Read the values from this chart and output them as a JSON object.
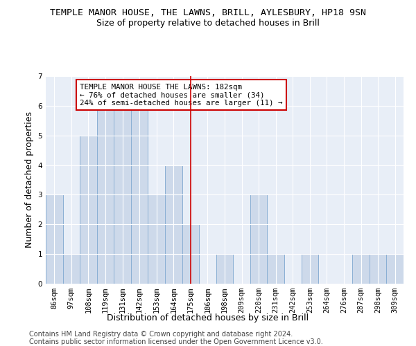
{
  "title": "TEMPLE MANOR HOUSE, THE LAWNS, BRILL, AYLESBURY, HP18 9SN",
  "subtitle": "Size of property relative to detached houses in Brill",
  "xlabel": "Distribution of detached houses by size in Brill",
  "ylabel": "Number of detached properties",
  "categories": [
    "86sqm",
    "97sqm",
    "108sqm",
    "119sqm",
    "131sqm",
    "142sqm",
    "153sqm",
    "164sqm",
    "175sqm",
    "186sqm",
    "198sqm",
    "209sqm",
    "220sqm",
    "231sqm",
    "242sqm",
    "253sqm",
    "264sqm",
    "276sqm",
    "287sqm",
    "298sqm",
    "309sqm"
  ],
  "values": [
    3,
    1,
    5,
    6,
    6,
    6,
    3,
    4,
    2,
    0,
    1,
    0,
    3,
    1,
    0,
    1,
    0,
    0,
    1,
    1,
    1
  ],
  "bar_color": "#cdd9ea",
  "bar_edge_color": "#8aafd4",
  "vline_x_index": 8,
  "vline_color": "#cc0000",
  "annotation_text": "TEMPLE MANOR HOUSE THE LAWNS: 182sqm\n← 76% of detached houses are smaller (34)\n24% of semi-detached houses are larger (11) →",
  "annotation_box_color": "#ffffff",
  "annotation_box_edge_color": "#cc0000",
  "ylim": [
    0,
    7
  ],
  "yticks": [
    0,
    1,
    2,
    3,
    4,
    5,
    6,
    7
  ],
  "background_color": "#e8eef7",
  "footer_line1": "Contains HM Land Registry data © Crown copyright and database right 2024.",
  "footer_line2": "Contains public sector information licensed under the Open Government Licence v3.0.",
  "title_fontsize": 9.5,
  "subtitle_fontsize": 9,
  "xlabel_fontsize": 9,
  "ylabel_fontsize": 9,
  "tick_fontsize": 7.5,
  "annotation_fontsize": 7.8,
  "footer_fontsize": 7
}
